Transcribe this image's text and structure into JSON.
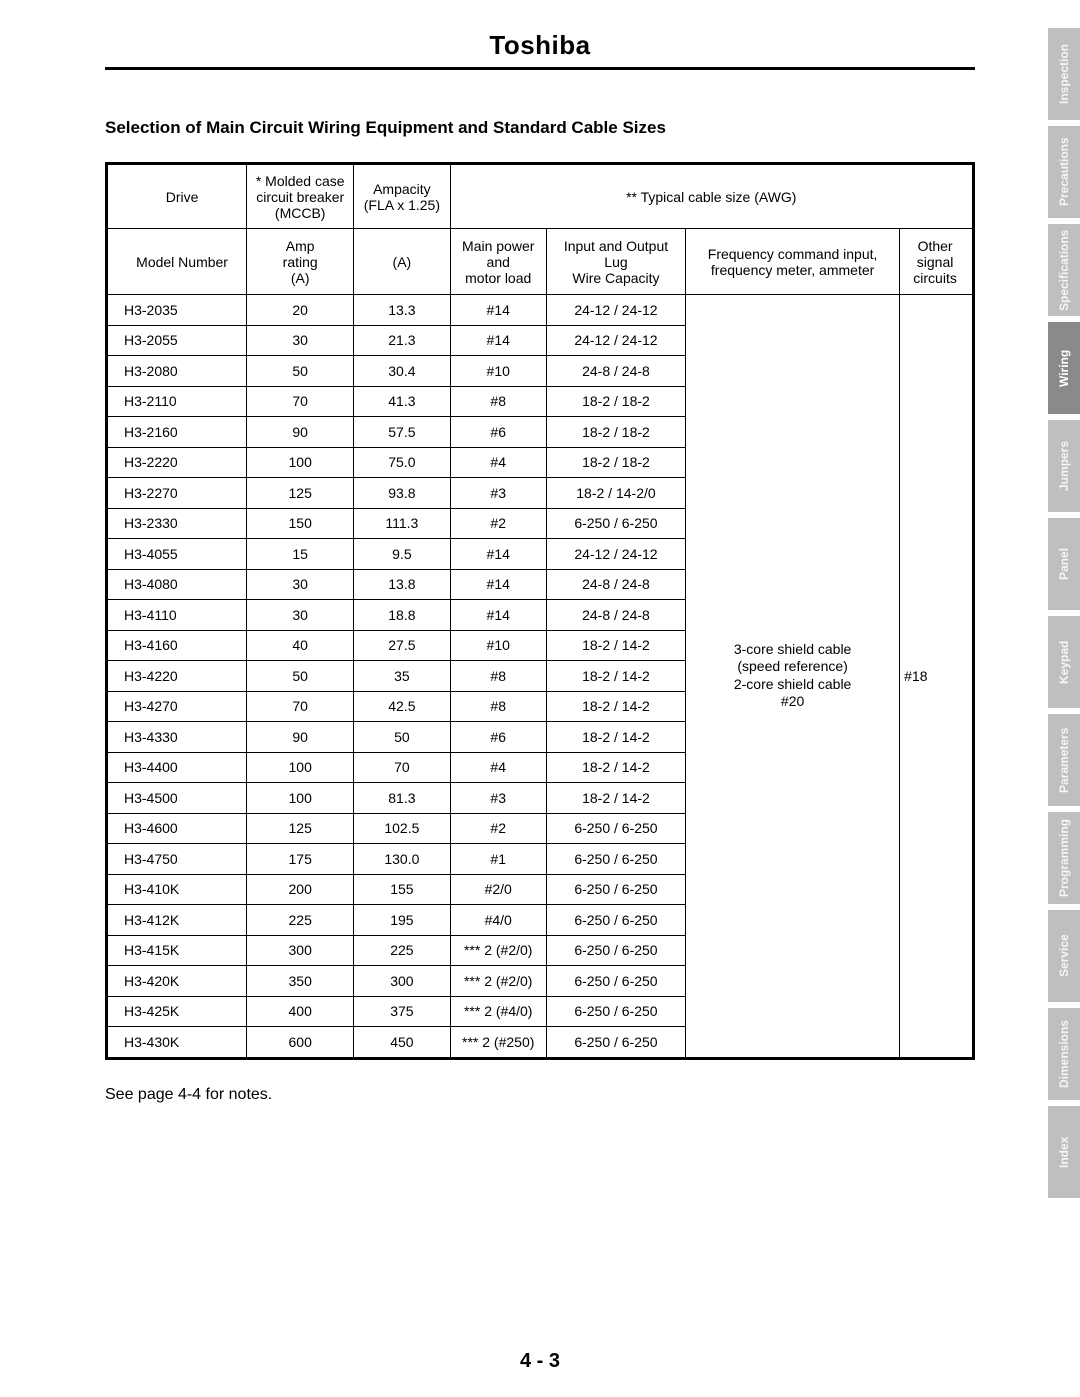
{
  "brand": "Toshiba",
  "section_title": "Selection of Main Circuit Wiring Equipment and Standard Cable Sizes",
  "footnote": "See page 4-4 for notes.",
  "page_number": "4 - 3",
  "header": {
    "r1": {
      "drive": "Drive",
      "mccb": "* Molded case\ncircuit breaker\n(MCCB)",
      "ampacity": "Ampacity\n(FLA x 1.25)",
      "cable": "** Typical cable size (AWG)"
    },
    "r2": {
      "model": "Model Number",
      "amp": "Amp\nrating\n(A)",
      "a": "(A)",
      "mpl": "Main power\nand\nmotor load",
      "io": "Input and Output\nLug\nWire Capacity",
      "freq": "Frequency command input,\nfrequency meter, ammeter",
      "other": "Other\nsignal\ncircuits"
    }
  },
  "freq_body": "3-core shield cable\n(speed reference)\n2-core shield cable\n#20",
  "other_body": "#18",
  "rows": [
    {
      "m": "H3-2035",
      "a": "20",
      "c": "13.3",
      "p": "#14",
      "io": "24-12 / 24-12"
    },
    {
      "m": "H3-2055",
      "a": "30",
      "c": "21.3",
      "p": "#14",
      "io": "24-12 / 24-12"
    },
    {
      "m": "H3-2080",
      "a": "50",
      "c": "30.4",
      "p": "#10",
      "io": "24-8 / 24-8"
    },
    {
      "m": "H3-2110",
      "a": "70",
      "c": "41.3",
      "p": "#8",
      "io": "18-2 / 18-2"
    },
    {
      "m": "H3-2160",
      "a": "90",
      "c": "57.5",
      "p": "#6",
      "io": "18-2 / 18-2"
    },
    {
      "m": "H3-2220",
      "a": "100",
      "c": "75.0",
      "p": "#4",
      "io": "18-2 / 18-2"
    },
    {
      "m": "H3-2270",
      "a": "125",
      "c": "93.8",
      "p": "#3",
      "io": "18-2 / 14-2/0"
    },
    {
      "m": "H3-2330",
      "a": "150",
      "c": "111.3",
      "p": "#2",
      "io": "6-250 / 6-250"
    },
    {
      "m": "H3-4055",
      "a": "15",
      "c": "9.5",
      "p": "#14",
      "io": "24-12 / 24-12"
    },
    {
      "m": "H3-4080",
      "a": "30",
      "c": "13.8",
      "p": "#14",
      "io": "24-8 / 24-8"
    },
    {
      "m": "H3-4110",
      "a": "30",
      "c": "18.8",
      "p": "#14",
      "io": "24-8 / 24-8"
    },
    {
      "m": "H3-4160",
      "a": "40",
      "c": "27.5",
      "p": "#10",
      "io": "18-2 / 14-2"
    },
    {
      "m": "H3-4220",
      "a": "50",
      "c": "35",
      "p": "#8",
      "io": "18-2 / 14-2"
    },
    {
      "m": "H3-4270",
      "a": "70",
      "c": "42.5",
      "p": "#8",
      "io": "18-2 / 14-2"
    },
    {
      "m": "H3-4330",
      "a": "90",
      "c": "50",
      "p": "#6",
      "io": "18-2 / 14-2"
    },
    {
      "m": "H3-4400",
      "a": "100",
      "c": "70",
      "p": "#4",
      "io": "18-2 / 14-2"
    },
    {
      "m": "H3-4500",
      "a": "100",
      "c": "81.3",
      "p": "#3",
      "io": "18-2 / 14-2"
    },
    {
      "m": "H3-4600",
      "a": "125",
      "c": "102.5",
      "p": "#2",
      "io": "6-250 / 6-250"
    },
    {
      "m": "H3-4750",
      "a": "175",
      "c": "130.0",
      "p": "#1",
      "io": "6-250 / 6-250"
    },
    {
      "m": "H3-410K",
      "a": "200",
      "c": "155",
      "p": "#2/0",
      "io": "6-250 / 6-250"
    },
    {
      "m": "H3-412K",
      "a": "225",
      "c": "195",
      "p": "#4/0",
      "io": "6-250 / 6-250"
    },
    {
      "m": "H3-415K",
      "a": "300",
      "c": "225",
      "p": "*** 2 (#2/0)",
      "io": "6-250 / 6-250"
    },
    {
      "m": "H3-420K",
      "a": "350",
      "c": "300",
      "p": "*** 2 (#2/0)",
      "io": "6-250 / 6-250"
    },
    {
      "m": "H3-425K",
      "a": "400",
      "c": "375",
      "p": "*** 2 (#4/0)",
      "io": "6-250 / 6-250"
    },
    {
      "m": "H3-430K",
      "a": "600",
      "c": "450",
      "p": "*** 2 (#250)",
      "io": "6-250 / 6-250"
    }
  ],
  "tabs": [
    {
      "label": "Inspection",
      "active": false
    },
    {
      "label": "Precautions",
      "active": false
    },
    {
      "label": "Specifications",
      "active": false
    },
    {
      "label": "Wiring",
      "active": true
    },
    {
      "label": "Jumpers",
      "active": false
    },
    {
      "label": "Panel",
      "active": false
    },
    {
      "label": "Keypad",
      "active": false
    },
    {
      "label": "Parameters",
      "active": false
    },
    {
      "label": "Programming",
      "active": false
    },
    {
      "label": "Service",
      "active": false
    },
    {
      "label": "Dimensions",
      "active": false
    },
    {
      "label": "Index",
      "active": false
    }
  ]
}
